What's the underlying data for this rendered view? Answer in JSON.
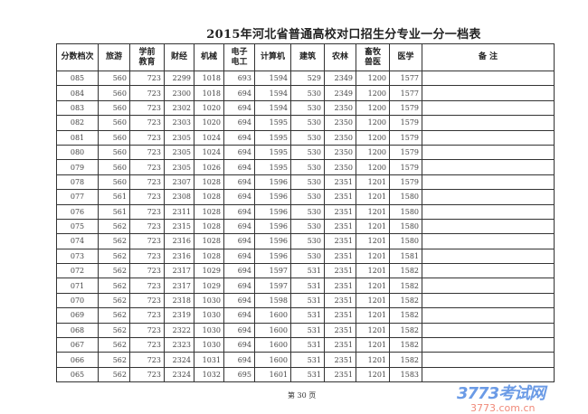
{
  "title": "2015年河北省普通高校对口招生分专业一分一档表",
  "headers": [
    "分数档次",
    "旅游",
    "学前教育",
    "财经",
    "机械",
    "电子电工",
    "计算机",
    "建筑",
    "农林",
    "畜牧兽医",
    "医学",
    "备 注"
  ],
  "rows": [
    [
      "085",
      "560",
      "723",
      "2299",
      "1018",
      "693",
      "1594",
      "529",
      "2349",
      "1200",
      "1577",
      ""
    ],
    [
      "084",
      "560",
      "723",
      "2300",
      "1018",
      "694",
      "1594",
      "530",
      "2349",
      "1200",
      "1577",
      ""
    ],
    [
      "083",
      "560",
      "723",
      "2302",
      "1020",
      "694",
      "1594",
      "530",
      "2350",
      "1200",
      "1579",
      ""
    ],
    [
      "082",
      "560",
      "723",
      "2303",
      "1020",
      "694",
      "1595",
      "530",
      "2350",
      "1200",
      "1579",
      ""
    ],
    [
      "081",
      "560",
      "723",
      "2305",
      "1024",
      "694",
      "1595",
      "530",
      "2350",
      "1200",
      "1579",
      ""
    ],
    [
      "080",
      "560",
      "723",
      "2305",
      "1024",
      "694",
      "1595",
      "530",
      "2350",
      "1200",
      "1579",
      ""
    ],
    [
      "079",
      "560",
      "723",
      "2305",
      "1026",
      "694",
      "1595",
      "530",
      "2350",
      "1200",
      "1579",
      ""
    ],
    [
      "078",
      "560",
      "723",
      "2307",
      "1028",
      "694",
      "1596",
      "530",
      "2351",
      "1201",
      "1579",
      ""
    ],
    [
      "077",
      "561",
      "723",
      "2308",
      "1028",
      "694",
      "1596",
      "530",
      "2351",
      "1201",
      "1580",
      ""
    ],
    [
      "076",
      "561",
      "723",
      "2311",
      "1028",
      "694",
      "1596",
      "530",
      "2351",
      "1201",
      "1580",
      ""
    ],
    [
      "075",
      "562",
      "723",
      "2315",
      "1028",
      "694",
      "1596",
      "530",
      "2351",
      "1201",
      "1580",
      ""
    ],
    [
      "074",
      "562",
      "723",
      "2316",
      "1028",
      "694",
      "1596",
      "530",
      "2351",
      "1201",
      "1580",
      ""
    ],
    [
      "073",
      "562",
      "723",
      "2316",
      "1028",
      "694",
      "1596",
      "530",
      "2351",
      "1201",
      "1581",
      ""
    ],
    [
      "072",
      "562",
      "723",
      "2317",
      "1029",
      "694",
      "1597",
      "531",
      "2351",
      "1201",
      "1582",
      ""
    ],
    [
      "071",
      "562",
      "723",
      "2317",
      "1029",
      "694",
      "1597",
      "531",
      "2351",
      "1201",
      "1582",
      ""
    ],
    [
      "070",
      "562",
      "723",
      "2318",
      "1030",
      "694",
      "1598",
      "531",
      "2351",
      "1201",
      "1582",
      ""
    ],
    [
      "069",
      "562",
      "723",
      "2319",
      "1030",
      "694",
      "1600",
      "531",
      "2351",
      "1201",
      "1582",
      ""
    ],
    [
      "068",
      "562",
      "723",
      "2322",
      "1030",
      "694",
      "1600",
      "531",
      "2351",
      "1201",
      "1582",
      ""
    ],
    [
      "067",
      "562",
      "723",
      "2323",
      "1030",
      "694",
      "1600",
      "531",
      "2351",
      "1201",
      "1582",
      ""
    ],
    [
      "066",
      "562",
      "723",
      "2324",
      "1031",
      "694",
      "1600",
      "531",
      "2351",
      "1201",
      "1582",
      ""
    ],
    [
      "065",
      "562",
      "723",
      "2324",
      "1032",
      "695",
      "1601",
      "531",
      "2351",
      "1201",
      "1583",
      ""
    ]
  ],
  "footer": "第 30 页",
  "watermark": {
    "logo": "3773考试网",
    "url": "3773.com.cn"
  }
}
